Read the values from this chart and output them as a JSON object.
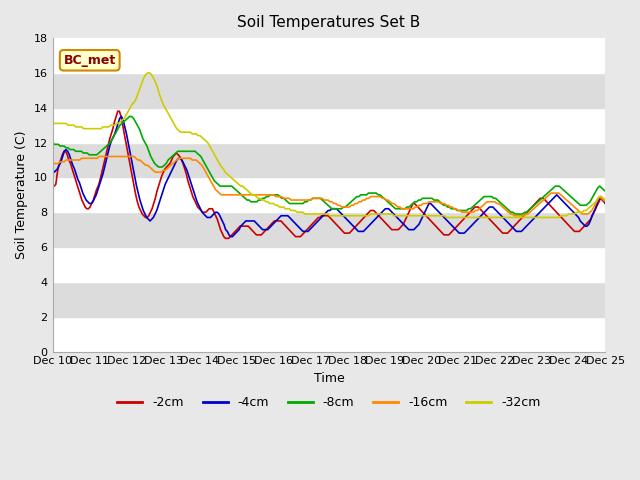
{
  "title": "Soil Temperatures Set B",
  "xlabel": "Time",
  "ylabel": "Soil Temperature (C)",
  "ylim": [
    0,
    18
  ],
  "yticks": [
    0,
    2,
    4,
    6,
    8,
    10,
    12,
    14,
    16,
    18
  ],
  "x_labels": [
    "Dec 10",
    "Dec 11",
    "Dec 12",
    "Dec 13",
    "Dec 14",
    "Dec 15",
    "Dec 16",
    "Dec 17",
    "Dec 18",
    "Dec 19",
    "Dec 20",
    "Dec 21",
    "Dec 22",
    "Dec 23",
    "Dec 24",
    "Dec 25"
  ],
  "annotation_text": "BC_met",
  "colors": {
    "-2cm": "#cc0000",
    "-4cm": "#0000cc",
    "-8cm": "#00aa00",
    "-16cm": "#ff8800",
    "-32cm": "#cccc00"
  },
  "series": {
    "-2cm": [
      9.6,
      9.5,
      9.6,
      10.3,
      10.8,
      11.0,
      11.3,
      11.5,
      11.5,
      11.3,
      11.0,
      10.8,
      10.5,
      10.2,
      9.9,
      9.6,
      9.3,
      9.0,
      8.7,
      8.5,
      8.3,
      8.2,
      8.2,
      8.3,
      8.5,
      8.7,
      9.0,
      9.3,
      9.5,
      9.8,
      10.2,
      10.6,
      11.0,
      11.4,
      11.8,
      12.2,
      12.5,
      12.8,
      13.2,
      13.5,
      13.8,
      13.8,
      13.5,
      13.0,
      12.5,
      12.0,
      11.5,
      11.0,
      10.5,
      10.0,
      9.5,
      9.0,
      8.6,
      8.3,
      8.1,
      7.9,
      7.8,
      7.7,
      7.7,
      7.8,
      8.0,
      8.2,
      8.5,
      8.8,
      9.2,
      9.5,
      9.8,
      10.1,
      10.3,
      10.5,
      10.6,
      10.7,
      10.8,
      11.0,
      11.2,
      11.3,
      11.4,
      11.3,
      11.2,
      11.0,
      10.8,
      10.5,
      10.2,
      9.8,
      9.5,
      9.2,
      8.9,
      8.7,
      8.5,
      8.3,
      8.2,
      8.1,
      8.0,
      8.0,
      8.0,
      8.1,
      8.2,
      8.2,
      8.2,
      8.0,
      7.8,
      7.6,
      7.3,
      7.0,
      6.8,
      6.6,
      6.5,
      6.5,
      6.5,
      6.6,
      6.7,
      6.8,
      6.9,
      7.0,
      7.1,
      7.2,
      7.2,
      7.2,
      7.2,
      7.2,
      7.2,
      7.1,
      7.0,
      6.9,
      6.8,
      6.7,
      6.7,
      6.7,
      6.7,
      6.8,
      6.9,
      7.0,
      7.1,
      7.2,
      7.3,
      7.4,
      7.5,
      7.5,
      7.5,
      7.5,
      7.5,
      7.4,
      7.3,
      7.2,
      7.1,
      7.0,
      6.9,
      6.8,
      6.7,
      6.6,
      6.6,
      6.6,
      6.6,
      6.7,
      6.8,
      6.9,
      7.0,
      7.1,
      7.2,
      7.3,
      7.4,
      7.5,
      7.6,
      7.7,
      7.7,
      7.8,
      7.8,
      7.8,
      7.8,
      7.8,
      7.7,
      7.6,
      7.5,
      7.4,
      7.3,
      7.2,
      7.1,
      7.0,
      6.9,
      6.8,
      6.8,
      6.8,
      6.8,
      6.9,
      7.0,
      7.1,
      7.2,
      7.3,
      7.4,
      7.5,
      7.6,
      7.7,
      7.8,
      7.9,
      8.0,
      8.1,
      8.1,
      8.1,
      8.0,
      7.9,
      7.8,
      7.7,
      7.6,
      7.5,
      7.4,
      7.3,
      7.2,
      7.1,
      7.0,
      7.0,
      7.0,
      7.0,
      7.0,
      7.1,
      7.2,
      7.3,
      7.5,
      7.7,
      7.9,
      8.1,
      8.3,
      8.5,
      8.5,
      8.4,
      8.3,
      8.2,
      8.1,
      8.0,
      7.9,
      7.8,
      7.7,
      7.6,
      7.5,
      7.4,
      7.3,
      7.2,
      7.1,
      7.0,
      6.9,
      6.8,
      6.7,
      6.7,
      6.7,
      6.7,
      6.8,
      6.9,
      7.0,
      7.1,
      7.2,
      7.3,
      7.4,
      7.5,
      7.6,
      7.7,
      7.8,
      7.9,
      8.0,
      8.1,
      8.2,
      8.3,
      8.3,
      8.3,
      8.2,
      8.1,
      8.0,
      7.9,
      7.8,
      7.7,
      7.6,
      7.5,
      7.4,
      7.3,
      7.2,
      7.1,
      7.0,
      6.9,
      6.8,
      6.8,
      6.8,
      6.8,
      6.9,
      7.0,
      7.1,
      7.2,
      7.3,
      7.4,
      7.5,
      7.6,
      7.7,
      7.8,
      7.9,
      8.0,
      8.1,
      8.2,
      8.3,
      8.4,
      8.5,
      8.6,
      8.7,
      8.8,
      8.8,
      8.8,
      8.7,
      8.6,
      8.5,
      8.4,
      8.3,
      8.2,
      8.1,
      8.0,
      7.9,
      7.8,
      7.7,
      7.6,
      7.5,
      7.4,
      7.3,
      7.2,
      7.1,
      7.0,
      6.9,
      6.9,
      6.9,
      6.9,
      7.0,
      7.1,
      7.2,
      7.3,
      7.4,
      7.5,
      7.6,
      7.8,
      8.0,
      8.2,
      8.4,
      8.6,
      8.8,
      8.7,
      8.6,
      8.5
    ],
    "-4cm": [
      10.4,
      10.3,
      10.4,
      10.5,
      10.7,
      10.9,
      11.2,
      11.5,
      11.6,
      11.5,
      11.3,
      11.0,
      10.7,
      10.5,
      10.2,
      9.9,
      9.7,
      9.4,
      9.1,
      8.9,
      8.7,
      8.6,
      8.5,
      8.5,
      8.6,
      8.8,
      9.0,
      9.3,
      9.6,
      9.9,
      10.2,
      10.6,
      11.0,
      11.4,
      11.8,
      12.1,
      12.3,
      12.5,
      12.8,
      13.1,
      13.4,
      13.5,
      13.3,
      12.9,
      12.5,
      12.0,
      11.5,
      11.0,
      10.5,
      10.0,
      9.5,
      9.1,
      8.7,
      8.4,
      8.1,
      7.9,
      7.7,
      7.6,
      7.5,
      7.6,
      7.7,
      7.9,
      8.1,
      8.4,
      8.7,
      9.0,
      9.3,
      9.6,
      9.8,
      10.0,
      10.2,
      10.4,
      10.6,
      10.8,
      11.0,
      11.1,
      11.1,
      11.0,
      10.8,
      10.6,
      10.4,
      10.1,
      9.8,
      9.5,
      9.2,
      8.9,
      8.6,
      8.4,
      8.2,
      8.0,
      7.9,
      7.8,
      7.7,
      7.7,
      7.7,
      7.8,
      7.9,
      8.0,
      8.0,
      7.9,
      7.7,
      7.5,
      7.3,
      7.0,
      6.9,
      6.7,
      6.6,
      6.6,
      6.7,
      6.8,
      6.9,
      7.0,
      7.2,
      7.3,
      7.4,
      7.5,
      7.5,
      7.5,
      7.5,
      7.5,
      7.5,
      7.4,
      7.3,
      7.2,
      7.1,
      7.0,
      7.0,
      7.0,
      7.0,
      7.1,
      7.2,
      7.3,
      7.4,
      7.5,
      7.6,
      7.7,
      7.8,
      7.8,
      7.8,
      7.8,
      7.8,
      7.7,
      7.6,
      7.5,
      7.4,
      7.3,
      7.2,
      7.1,
      7.0,
      6.9,
      6.9,
      6.9,
      6.9,
      7.0,
      7.1,
      7.2,
      7.3,
      7.4,
      7.5,
      7.6,
      7.7,
      7.8,
      7.9,
      8.0,
      8.1,
      8.1,
      8.2,
      8.2,
      8.2,
      8.2,
      8.1,
      8.0,
      7.9,
      7.8,
      7.7,
      7.6,
      7.5,
      7.4,
      7.3,
      7.2,
      7.1,
      7.0,
      6.9,
      6.9,
      6.9,
      6.9,
      7.0,
      7.1,
      7.2,
      7.3,
      7.4,
      7.5,
      7.6,
      7.7,
      7.8,
      7.9,
      8.0,
      8.1,
      8.2,
      8.2,
      8.2,
      8.1,
      8.0,
      7.9,
      7.8,
      7.7,
      7.6,
      7.5,
      7.4,
      7.3,
      7.2,
      7.1,
      7.0,
      7.0,
      7.0,
      7.0,
      7.1,
      7.2,
      7.3,
      7.5,
      7.7,
      7.9,
      8.1,
      8.3,
      8.5,
      8.5,
      8.4,
      8.3,
      8.2,
      8.1,
      8.0,
      7.9,
      7.8,
      7.7,
      7.6,
      7.5,
      7.4,
      7.3,
      7.2,
      7.1,
      7.0,
      6.9,
      6.8,
      6.8,
      6.8,
      6.8,
      6.9,
      7.0,
      7.1,
      7.2,
      7.3,
      7.4,
      7.5,
      7.6,
      7.7,
      7.8,
      7.9,
      8.0,
      8.1,
      8.2,
      8.3,
      8.3,
      8.3,
      8.2,
      8.1,
      8.0,
      7.9,
      7.8,
      7.7,
      7.6,
      7.5,
      7.4,
      7.3,
      7.2,
      7.1,
      7.0,
      6.9,
      6.9,
      6.9,
      6.9,
      7.0,
      7.1,
      7.2,
      7.3,
      7.4,
      7.5,
      7.6,
      7.7,
      7.8,
      7.9,
      8.0,
      8.1,
      8.2,
      8.3,
      8.4,
      8.5,
      8.6,
      8.7,
      8.8,
      8.9,
      9.0,
      8.9,
      8.8,
      8.7,
      8.6,
      8.5,
      8.4,
      8.3,
      8.2,
      8.1,
      8.0,
      7.9,
      7.8,
      7.7,
      7.5,
      7.4,
      7.3,
      7.2,
      7.2,
      7.3,
      7.5,
      7.8,
      8.0,
      8.2,
      8.5,
      8.7,
      8.9,
      8.8,
      8.7,
      8.5
    ],
    "-8cm": [
      12.0,
      11.9,
      11.9,
      11.9,
      11.8,
      11.8,
      11.8,
      11.7,
      11.7,
      11.6,
      11.6,
      11.6,
      11.5,
      11.5,
      11.5,
      11.5,
      11.4,
      11.4,
      11.4,
      11.3,
      11.3,
      11.3,
      11.3,
      11.3,
      11.4,
      11.5,
      11.6,
      11.7,
      11.8,
      11.9,
      12.0,
      12.2,
      12.4,
      12.6,
      12.8,
      13.0,
      13.1,
      13.2,
      13.3,
      13.4,
      13.5,
      13.5,
      13.4,
      13.2,
      13.0,
      12.8,
      12.5,
      12.2,
      12.0,
      11.8,
      11.5,
      11.2,
      11.0,
      10.8,
      10.7,
      10.6,
      10.6,
      10.6,
      10.7,
      10.8,
      11.0,
      11.1,
      11.2,
      11.3,
      11.4,
      11.5,
      11.5,
      11.5,
      11.5,
      11.5,
      11.5,
      11.5,
      11.5,
      11.5,
      11.5,
      11.4,
      11.3,
      11.2,
      11.0,
      10.8,
      10.6,
      10.4,
      10.2,
      10.0,
      9.8,
      9.7,
      9.6,
      9.5,
      9.5,
      9.5,
      9.5,
      9.5,
      9.5,
      9.5,
      9.4,
      9.3,
      9.2,
      9.1,
      9.0,
      8.9,
      8.8,
      8.7,
      8.7,
      8.6,
      8.6,
      8.6,
      8.6,
      8.7,
      8.7,
      8.8,
      8.8,
      8.9,
      8.9,
      9.0,
      9.0,
      9.0,
      9.0,
      9.0,
      8.9,
      8.8,
      8.8,
      8.7,
      8.6,
      8.5,
      8.5,
      8.5,
      8.5,
      8.5,
      8.5,
      8.5,
      8.5,
      8.6,
      8.6,
      8.7,
      8.7,
      8.8,
      8.8,
      8.8,
      8.8,
      8.8,
      8.7,
      8.6,
      8.5,
      8.4,
      8.3,
      8.2,
      8.2,
      8.2,
      8.2,
      8.2,
      8.2,
      8.3,
      8.3,
      8.4,
      8.5,
      8.6,
      8.7,
      8.8,
      8.9,
      8.9,
      9.0,
      9.0,
      9.0,
      9.0,
      9.1,
      9.1,
      9.1,
      9.1,
      9.1,
      9.0,
      9.0,
      8.9,
      8.8,
      8.7,
      8.6,
      8.5,
      8.4,
      8.3,
      8.2,
      8.2,
      8.2,
      8.2,
      8.2,
      8.2,
      8.3,
      8.3,
      8.4,
      8.5,
      8.6,
      8.6,
      8.7,
      8.7,
      8.8,
      8.8,
      8.8,
      8.8,
      8.8,
      8.8,
      8.7,
      8.7,
      8.7,
      8.6,
      8.5,
      8.4,
      8.4,
      8.3,
      8.3,
      8.2,
      8.2,
      8.2,
      8.1,
      8.1,
      8.1,
      8.1,
      8.1,
      8.1,
      8.2,
      8.2,
      8.3,
      8.4,
      8.5,
      8.6,
      8.7,
      8.8,
      8.9,
      8.9,
      8.9,
      8.9,
      8.9,
      8.8,
      8.8,
      8.7,
      8.6,
      8.5,
      8.4,
      8.3,
      8.2,
      8.1,
      8.0,
      8.0,
      7.9,
      7.9,
      7.9,
      7.9,
      7.9,
      8.0,
      8.0,
      8.1,
      8.2,
      8.3,
      8.4,
      8.5,
      8.6,
      8.7,
      8.8,
      8.9,
      9.0,
      9.1,
      9.2,
      9.3,
      9.4,
      9.5,
      9.5,
      9.5,
      9.4,
      9.3,
      9.2,
      9.1,
      9.0,
      8.9,
      8.8,
      8.7,
      8.6,
      8.5,
      8.4,
      8.4,
      8.4,
      8.4,
      8.5,
      8.6,
      8.8,
      9.0,
      9.2,
      9.4,
      9.5,
      9.4,
      9.3,
      9.2
    ],
    "-16cm": [
      10.8,
      10.8,
      10.8,
      10.8,
      10.9,
      10.9,
      10.9,
      11.0,
      11.0,
      11.0,
      11.0,
      11.0,
      11.0,
      11.0,
      11.0,
      11.1,
      11.1,
      11.1,
      11.1,
      11.1,
      11.1,
      11.1,
      11.1,
      11.1,
      11.2,
      11.2,
      11.2,
      11.2,
      11.2,
      11.2,
      11.2,
      11.2,
      11.2,
      11.2,
      11.2,
      11.2,
      11.2,
      11.2,
      11.2,
      11.2,
      11.2,
      11.2,
      11.2,
      11.1,
      11.0,
      11.0,
      10.9,
      10.8,
      10.7,
      10.7,
      10.6,
      10.5,
      10.4,
      10.3,
      10.3,
      10.3,
      10.3,
      10.4,
      10.4,
      10.5,
      10.6,
      10.7,
      10.8,
      10.9,
      11.0,
      11.1,
      11.1,
      11.1,
      11.1,
      11.1,
      11.1,
      11.1,
      11.0,
      11.0,
      11.0,
      10.9,
      10.8,
      10.7,
      10.5,
      10.3,
      10.1,
      9.9,
      9.7,
      9.5,
      9.3,
      9.2,
      9.1,
      9.0,
      9.0,
      9.0,
      9.0,
      9.0,
      9.0,
      9.0,
      9.0,
      9.0,
      9.0,
      9.0,
      9.0,
      9.0,
      9.0,
      9.0,
      9.0,
      9.0,
      9.0,
      9.0,
      9.0,
      9.0,
      9.0,
      9.0,
      9.0,
      9.0,
      9.0,
      9.0,
      9.0,
      8.9,
      8.9,
      8.9,
      8.9,
      8.8,
      8.8,
      8.8,
      8.8,
      8.7,
      8.7,
      8.7,
      8.7,
      8.7,
      8.7,
      8.7,
      8.7,
      8.7,
      8.7,
      8.7,
      8.8,
      8.8,
      8.8,
      8.8,
      8.8,
      8.8,
      8.7,
      8.7,
      8.7,
      8.6,
      8.6,
      8.5,
      8.5,
      8.4,
      8.4,
      8.3,
      8.3,
      8.3,
      8.3,
      8.3,
      8.4,
      8.4,
      8.5,
      8.5,
      8.6,
      8.6,
      8.7,
      8.7,
      8.8,
      8.8,
      8.9,
      8.9,
      8.9,
      8.9,
      8.9,
      8.9,
      8.8,
      8.8,
      8.7,
      8.7,
      8.6,
      8.5,
      8.5,
      8.4,
      8.3,
      8.3,
      8.2,
      8.2,
      8.2,
      8.2,
      8.2,
      8.2,
      8.2,
      8.3,
      8.3,
      8.4,
      8.4,
      8.5,
      8.5,
      8.5,
      8.6,
      8.6,
      8.6,
      8.6,
      8.6,
      8.6,
      8.5,
      8.5,
      8.5,
      8.4,
      8.4,
      8.3,
      8.3,
      8.2,
      8.2,
      8.1,
      8.1,
      8.0,
      8.0,
      8.0,
      8.0,
      8.0,
      8.0,
      8.0,
      8.1,
      8.1,
      8.2,
      8.3,
      8.4,
      8.5,
      8.6,
      8.6,
      8.6,
      8.6,
      8.6,
      8.5,
      8.5,
      8.4,
      8.3,
      8.2,
      8.1,
      8.0,
      7.9,
      7.9,
      7.8,
      7.8,
      7.8,
      7.8,
      7.8,
      7.8,
      7.9,
      7.9,
      8.0,
      8.1,
      8.2,
      8.3,
      8.4,
      8.5,
      8.6,
      8.7,
      8.8,
      8.9,
      9.0,
      9.1,
      9.1,
      9.1,
      9.1,
      9.1,
      9.0,
      8.9,
      8.8,
      8.7,
      8.6,
      8.5,
      8.4,
      8.3,
      8.2,
      8.1,
      8.0,
      7.9,
      7.9,
      7.9,
      7.9,
      8.0,
      8.1,
      8.3,
      8.5,
      8.7,
      8.9,
      8.8,
      8.7,
      8.6
    ],
    "-32cm": [
      13.1,
      13.1,
      13.1,
      13.1,
      13.1,
      13.1,
      13.1,
      13.1,
      13.0,
      13.0,
      13.0,
      13.0,
      12.9,
      12.9,
      12.9,
      12.9,
      12.8,
      12.8,
      12.8,
      12.8,
      12.8,
      12.8,
      12.8,
      12.8,
      12.8,
      12.8,
      12.9,
      12.9,
      12.9,
      12.9,
      13.0,
      13.0,
      13.0,
      13.1,
      13.1,
      13.2,
      13.3,
      13.4,
      13.6,
      13.8,
      14.0,
      14.2,
      14.3,
      14.5,
      14.8,
      15.1,
      15.4,
      15.7,
      15.9,
      16.0,
      16.0,
      15.9,
      15.7,
      15.5,
      15.2,
      14.8,
      14.5,
      14.2,
      14.0,
      13.8,
      13.6,
      13.4,
      13.2,
      13.0,
      12.8,
      12.7,
      12.6,
      12.6,
      12.6,
      12.6,
      12.6,
      12.6,
      12.5,
      12.5,
      12.5,
      12.4,
      12.4,
      12.3,
      12.2,
      12.1,
      12.0,
      11.8,
      11.6,
      11.4,
      11.2,
      11.0,
      10.8,
      10.6,
      10.5,
      10.3,
      10.2,
      10.1,
      10.0,
      9.9,
      9.8,
      9.7,
      9.6,
      9.5,
      9.5,
      9.4,
      9.3,
      9.2,
      9.1,
      9.0,
      9.0,
      8.9,
      8.8,
      8.8,
      8.7,
      8.7,
      8.6,
      8.6,
      8.5,
      8.5,
      8.5,
      8.4,
      8.4,
      8.3,
      8.3,
      8.3,
      8.2,
      8.2,
      8.2,
      8.1,
      8.1,
      8.1,
      8.0,
      8.0,
      8.0,
      8.0,
      7.9,
      7.9,
      7.9,
      7.9,
      7.9,
      7.9,
      7.9,
      7.9,
      7.9,
      7.9,
      7.9,
      7.9,
      7.9,
      7.8,
      7.8,
      7.8,
      7.8,
      7.8,
      7.8,
      7.8,
      7.8,
      7.8,
      7.8,
      7.8,
      7.8,
      7.8,
      7.8,
      7.8,
      7.8,
      7.8,
      7.8,
      7.8,
      7.8,
      7.8,
      7.9,
      7.9,
      7.9,
      7.9,
      7.9,
      7.9,
      7.9,
      7.9,
      7.9,
      7.9,
      7.9,
      7.9,
      7.8,
      7.8,
      7.8,
      7.8,
      7.8,
      7.8,
      7.8,
      7.8,
      7.8,
      7.8,
      7.8,
      7.8,
      7.8,
      7.8,
      7.8,
      7.8,
      7.8,
      7.8,
      7.8,
      7.8,
      7.8,
      7.8,
      7.8,
      7.8,
      7.8,
      7.8,
      7.8,
      7.7,
      7.7,
      7.7,
      7.7,
      7.7,
      7.7,
      7.7,
      7.7,
      7.7,
      7.7,
      7.7,
      7.7,
      7.7,
      7.7,
      7.7,
      7.7,
      7.7,
      7.7,
      7.7,
      7.7,
      7.7,
      7.7,
      7.7,
      7.7,
      7.7,
      7.7,
      7.7,
      7.7,
      7.7,
      7.7,
      7.7,
      7.7,
      7.7,
      7.7,
      7.7,
      7.7,
      7.7,
      7.7,
      7.7,
      7.7,
      7.7,
      7.7,
      7.7,
      7.7,
      7.7,
      7.7,
      7.7,
      7.7,
      7.7,
      7.7,
      7.7,
      7.7,
      7.7,
      7.7,
      7.7,
      7.7,
      7.7,
      7.7,
      7.7,
      7.8,
      7.8,
      7.8,
      7.8,
      7.9,
      7.9,
      7.9,
      7.9,
      8.0,
      8.0,
      8.0,
      8.0,
      8.1,
      8.1,
      8.2,
      8.3,
      8.4,
      8.5,
      8.6,
      8.8,
      8.9,
      8.9,
      8.8,
      8.7
    ]
  }
}
